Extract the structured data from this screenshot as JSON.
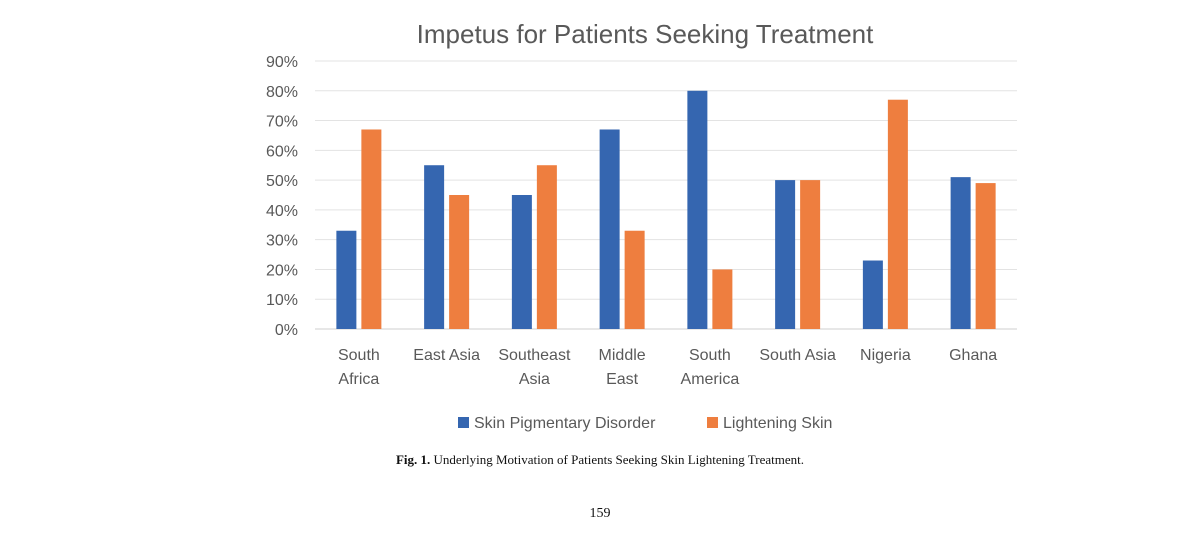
{
  "chart_data": {
    "type": "bar",
    "title": "Impetus for Patients Seeking Treatment",
    "categories": [
      [
        "South",
        "Africa"
      ],
      [
        "East Asia"
      ],
      [
        "Southeast",
        "Asia"
      ],
      [
        "Middle",
        "East"
      ],
      [
        "South",
        "America"
      ],
      [
        "South Asia"
      ],
      [
        "Nigeria"
      ],
      [
        "Ghana"
      ]
    ],
    "series": [
      {
        "name": "Skin Pigmentary Disorder",
        "color": "#3566b0",
        "values": [
          33,
          55,
          45,
          67,
          80,
          50,
          23,
          51
        ]
      },
      {
        "name": "Lightening Skin",
        "color": "#ee7e3f",
        "values": [
          67,
          45,
          55,
          33,
          20,
          50,
          77,
          49
        ]
      }
    ],
    "y_ticks": [
      "0%",
      "10%",
      "20%",
      "30%",
      "40%",
      "50%",
      "60%",
      "70%",
      "80%",
      "90%"
    ],
    "ylim": [
      0,
      90
    ],
    "xlabel": "",
    "ylabel": "",
    "grid": true,
    "legend_position": "bottom"
  },
  "caption": {
    "label": "Fig. 1.",
    "text": "Underlying Motivation of Patients Seeking Skin Lightening Treatment."
  },
  "page_number": "159"
}
